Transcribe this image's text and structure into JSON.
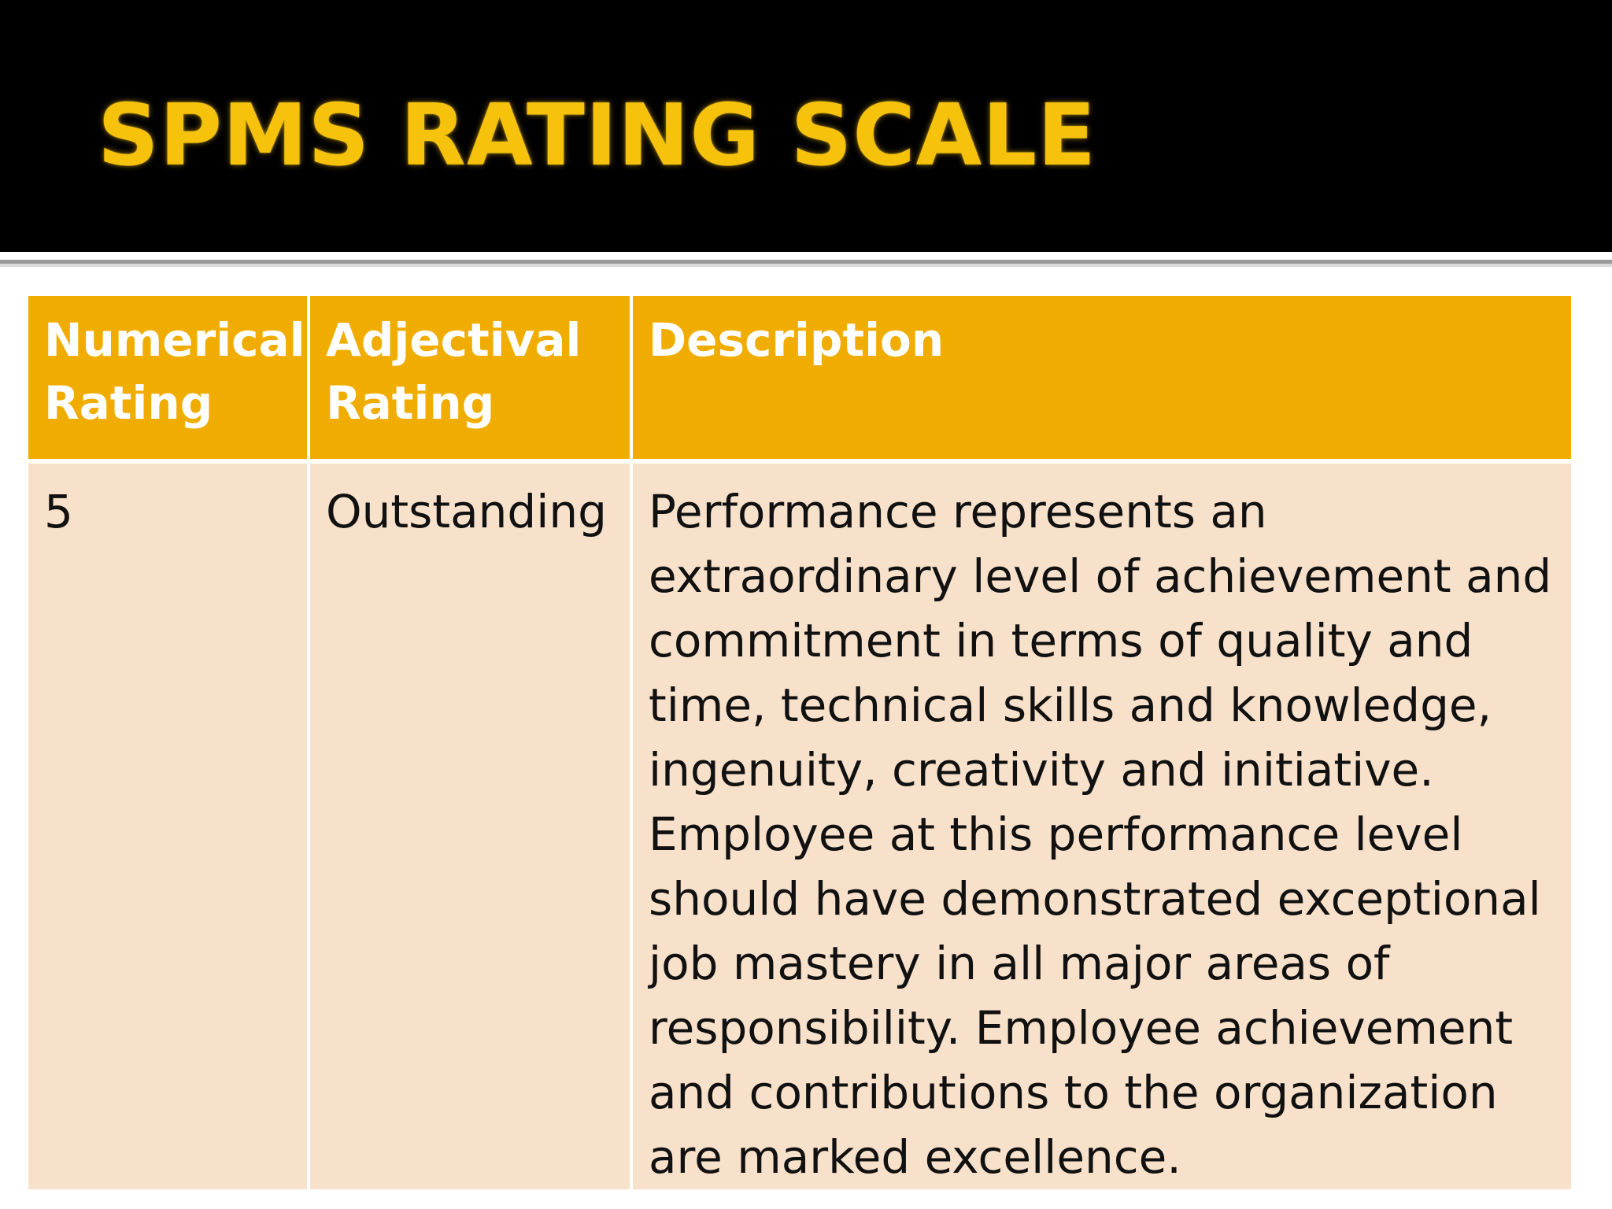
{
  "slide": {
    "title": "SPMS RATING SCALE"
  },
  "table": {
    "headers": {
      "numerical": "Numerical Rating",
      "adjectival": "Adjectival Rating",
      "description": "Description"
    },
    "rows": [
      {
        "numerical": "5",
        "adjectival": "Outstanding",
        "description": "Performance represents an extraordinary level of achievement and commitment in terms of quality and time, technical skills and knowledge, ingenuity, creativity and initiative. Employee at this performance level should have demonstrated exceptional job mastery in all major areas of responsibility. Employee achievement and contributions to the organization are marked excellence."
      }
    ]
  },
  "colors": {
    "title_bar": "#000000",
    "title_text": "#f7c20c",
    "header_fill": "#f0ad00",
    "row_fill": "#f8e1cb"
  }
}
